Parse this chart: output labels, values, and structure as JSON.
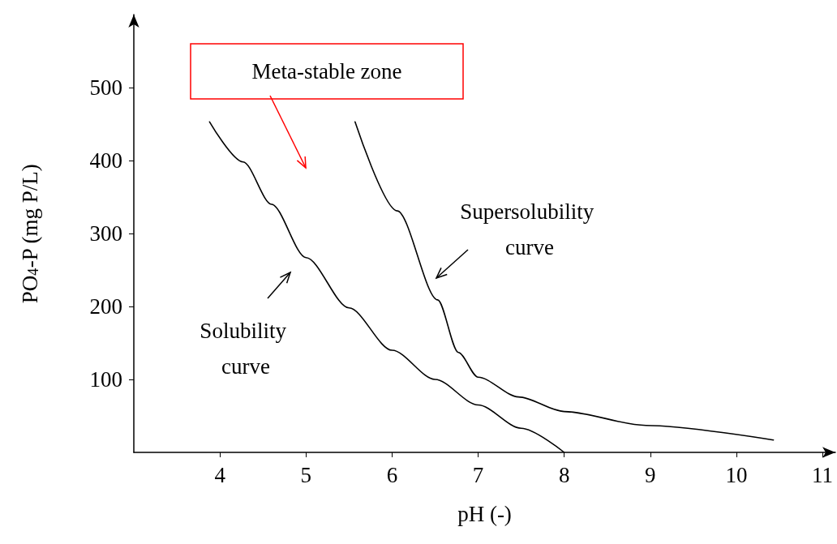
{
  "chart_data": {
    "type": "line",
    "xlabel": "pH (-)",
    "ylabel": "PO$_{4}$-P (mg P/L)",
    "xlim": [
      3,
      11.15
    ],
    "xticks": [
      4,
      5,
      6,
      7,
      8,
      9,
      10,
      11
    ],
    "ylim": [
      0,
      600
    ],
    "yticks": [
      100,
      200,
      300,
      400,
      500
    ],
    "grid": false,
    "marker": "none",
    "line_style": "solid",
    "series": [
      {
        "color": "#000000",
        "x": [
          3.88,
          4.27,
          4.6,
          5,
          5.5,
          6,
          6.5,
          7,
          7.5,
          8
        ],
        "values": [
          453,
          398,
          340,
          267,
          198,
          140,
          100,
          65,
          33,
          0
        ]
      },
      {
        "color": "#000000",
        "x": [
          5.57,
          6.06,
          6.53,
          6.77,
          7,
          7.47,
          8,
          8.95,
          10.43
        ],
        "values": [
          453,
          331,
          209,
          137,
          103,
          76,
          56,
          37,
          17
        ]
      }
    ],
    "annotations": [
      "Meta-stable zone",
      "Supersolubility curve",
      "Solubility curve"
    ]
  }
}
